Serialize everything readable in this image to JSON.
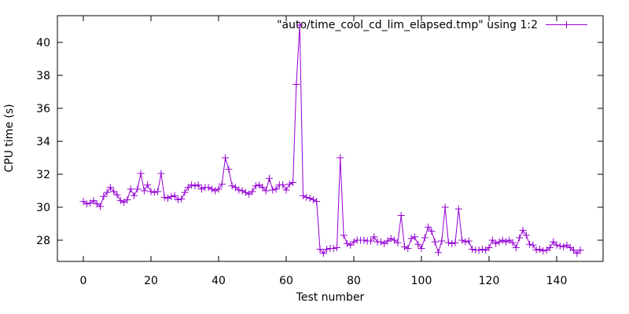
{
  "chart_data": {
    "type": "line",
    "title": "\"auto/time_cool_cd_lim_elapsed.tmp\" using 1:2",
    "xlabel": "Test number",
    "ylabel": "CPU time (s)",
    "series_color": "#9400d3",
    "marker": "plus",
    "grid": false,
    "legend_position": "top-right-inside",
    "x_start": 0,
    "x_step": 1,
    "x_ticks": [
      0,
      20,
      40,
      60,
      80,
      100,
      120,
      140
    ],
    "y_ticks": [
      28,
      30,
      32,
      34,
      36,
      38,
      40
    ],
    "xlim": [
      -7.7,
      153.7
    ],
    "ylim": [
      26.5,
      41.6
    ],
    "values": [
      30.35,
      30.2,
      30.25,
      30.4,
      30.2,
      30.05,
      30.65,
      30.9,
      31.2,
      30.95,
      30.75,
      30.4,
      30.3,
      30.45,
      31.1,
      30.7,
      31.1,
      32.05,
      31.0,
      31.35,
      30.95,
      30.9,
      30.95,
      32.05,
      30.6,
      30.55,
      30.65,
      30.7,
      30.45,
      30.5,
      30.9,
      31.2,
      31.35,
      31.3,
      31.35,
      31.1,
      31.2,
      31.2,
      31.1,
      31.0,
      31.1,
      31.4,
      33.0,
      32.3,
      31.3,
      31.2,
      31.05,
      31.0,
      30.9,
      30.8,
      30.95,
      31.3,
      31.35,
      31.2,
      31.0,
      31.75,
      31.05,
      31.1,
      31.35,
      31.35,
      31.05,
      31.4,
      31.5,
      37.45,
      41.05,
      30.7,
      30.6,
      30.55,
      30.45,
      30.35,
      27.45,
      27.2,
      27.45,
      27.5,
      27.5,
      27.55,
      33.0,
      28.3,
      27.8,
      27.7,
      27.9,
      28.0,
      28.0,
      28.0,
      27.95,
      27.95,
      28.2,
      27.9,
      27.9,
      27.8,
      27.95,
      28.1,
      28.0,
      27.85,
      29.5,
      27.6,
      27.5,
      28.1,
      28.2,
      27.75,
      27.5,
      28.15,
      28.8,
      28.55,
      27.9,
      27.25,
      27.95,
      30.0,
      27.85,
      27.8,
      27.85,
      29.9,
      28.0,
      27.9,
      27.95,
      27.45,
      27.4,
      27.4,
      27.45,
      27.4,
      27.55,
      28.0,
      27.8,
      27.9,
      28.0,
      27.9,
      28.0,
      27.85,
      27.55,
      28.15,
      28.6,
      28.3,
      27.75,
      27.7,
      27.4,
      27.45,
      27.35,
      27.4,
      27.55,
      27.9,
      27.7,
      27.65,
      27.6,
      27.7,
      27.55,
      27.4,
      27.2,
      27.4
    ]
  }
}
